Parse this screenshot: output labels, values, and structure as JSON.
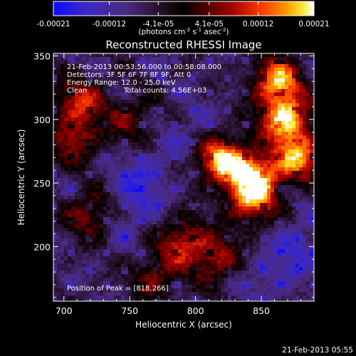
{
  "chart_data": {
    "type": "heatmap",
    "title": "Reconstructed RHESSI Image",
    "xlabel": "Heliocentric X (arcsec)",
    "ylabel": "Heliocentric Y (arcsec)",
    "xlim": [
      692,
      890
    ],
    "ylim": [
      157,
      352
    ],
    "x_ticks": [
      700,
      750,
      800,
      850
    ],
    "y_ticks": [
      200,
      250,
      300,
      350
    ],
    "colorbar": {
      "min": -0.00021,
      "max": 0.00021,
      "ticks": [
        "-0.00021",
        "-0.00012",
        "-4.1e-05",
        "4.1e-05",
        "0.00012",
        "0.00021"
      ],
      "units_prefix": "(photons cm",
      "units_exp1": "-2",
      "units_mid": " s",
      "units_exp2": "-1",
      "units_mid2": " asec",
      "units_exp3": "-2",
      "units_suffix": ")"
    },
    "annotations": {
      "time_range": "21-Feb-2013 00:53:56.000 to 00:58:08.000",
      "detectors": "Detectors: 3F 5F 6F 7F 8F 9F, Att 0",
      "energy": "Energy Range: 12.0 - 25.0 keV",
      "method": "Clean",
      "counts": "Total counts: 4.56E+03",
      "peak": "Position of Peak = [818,266]"
    },
    "bright_sources": [
      {
        "x": 862,
        "y": 330,
        "intensity": 0.9
      },
      {
        "x": 868,
        "y": 300,
        "intensity": 1.0
      },
      {
        "x": 820,
        "y": 268,
        "intensity": 1.0
      },
      {
        "x": 845,
        "y": 255,
        "intensity": 0.95
      },
      {
        "x": 878,
        "y": 270,
        "intensity": 0.85
      },
      {
        "x": 842,
        "y": 235,
        "intensity": 0.7
      },
      {
        "x": 712,
        "y": 315,
        "intensity": 0.6
      },
      {
        "x": 708,
        "y": 285,
        "intensity": 0.55
      },
      {
        "x": 720,
        "y": 225,
        "intensity": 0.5
      },
      {
        "x": 790,
        "y": 205,
        "intensity": 0.6
      },
      {
        "x": 815,
        "y": 190,
        "intensity": 0.55
      },
      {
        "x": 770,
        "y": 175,
        "intensity": 0.45
      },
      {
        "x": 750,
        "y": 300,
        "intensity": 0.4
      }
    ],
    "dark_sources": [
      {
        "x": 760,
        "y": 255,
        "intensity": 0.9
      },
      {
        "x": 750,
        "y": 225,
        "intensity": 0.7
      },
      {
        "x": 880,
        "y": 200,
        "intensity": 0.85
      },
      {
        "x": 795,
        "y": 290,
        "intensity": 0.5
      },
      {
        "x": 855,
        "y": 175,
        "intensity": 0.6
      }
    ]
  },
  "timestamp": "21-Feb-2013 05:55"
}
